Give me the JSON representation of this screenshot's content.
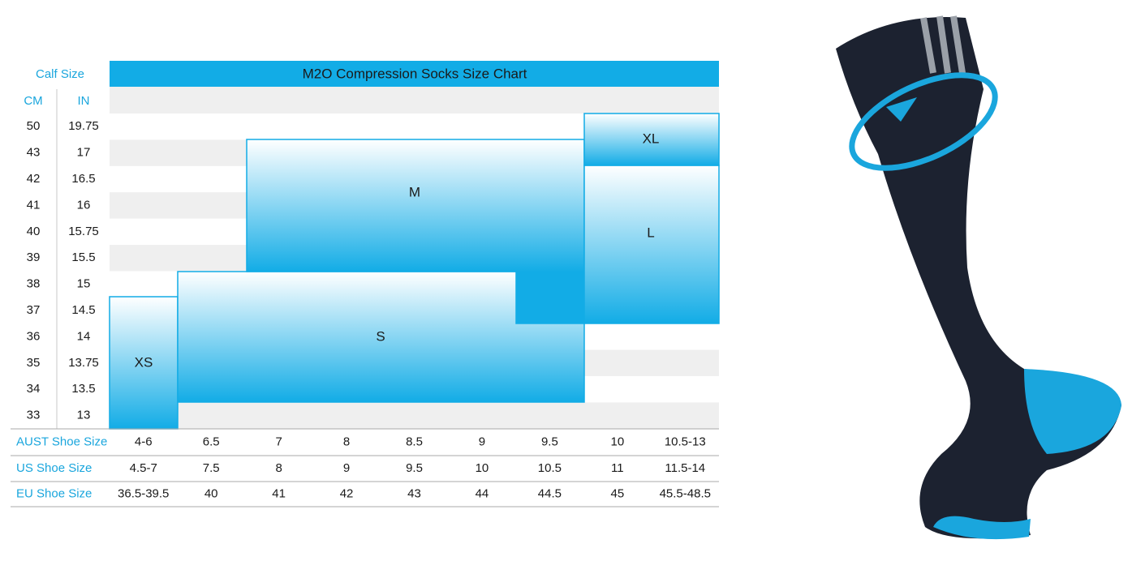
{
  "title": "M2O Compression Socks Size Chart",
  "calf_header": "Calf Size",
  "cm_label": "CM",
  "in_label": "IN",
  "calf_rows": [
    [
      "50",
      "19.75"
    ],
    [
      "43",
      "17"
    ],
    [
      "42",
      "16.5"
    ],
    [
      "41",
      "16"
    ],
    [
      "40",
      "15.75"
    ],
    [
      "39",
      "15.5"
    ],
    [
      "38",
      "15"
    ],
    [
      "37",
      "14.5"
    ],
    [
      "36",
      "14"
    ],
    [
      "35",
      "13.75"
    ],
    [
      "34",
      "13.5"
    ],
    [
      "33",
      "13"
    ]
  ],
  "shoe_rows": [
    {
      "label": "AUST Shoe Size",
      "values": [
        "4-6",
        "6.5",
        "7",
        "8",
        "8.5",
        "9",
        "9.5",
        "10",
        "10.5-13"
      ]
    },
    {
      "label": "US Shoe Size",
      "values": [
        "4.5-7",
        "7.5",
        "8",
        "9",
        "9.5",
        "10",
        "10.5",
        "11",
        "11.5-14"
      ]
    },
    {
      "label": "EU Shoe Size",
      "values": [
        "36.5-39.5",
        "40",
        "41",
        "42",
        "43",
        "44",
        "44.5",
        "45",
        "45.5-48.5"
      ]
    }
  ],
  "sizes": [
    "XS",
    "S",
    "M",
    "L",
    "XL"
  ]
}
